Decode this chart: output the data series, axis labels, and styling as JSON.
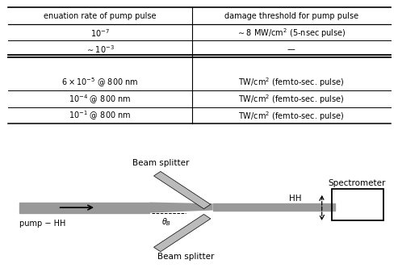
{
  "table_header": [
    "enuation rate of pump pulse",
    "damage threshold for pump pulse"
  ],
  "table_rows": [
    [
      "$10^{-7}$",
      "$\\sim 8$ MW/cm$^2$ (5-nsec pulse)"
    ],
    [
      "$\\sim 10^{-3}$",
      "—"
    ],
    [
      "",
      ""
    ],
    [
      "$6 \\times 10^{-5}$ @ 800 nm",
      "TW/cm$^2$ (femto-sec. pulse)"
    ],
    [
      "$10^{-4}$ @ 800 nm",
      "TW/cm$^2$ (femto-sec. pulse)"
    ],
    [
      "$10^{-1}$ @ 800 nm",
      "TW/cm$^2$ (femto-sec. pulse)"
    ]
  ],
  "bg_color": "#ffffff",
  "text_color": "#000000",
  "gray": "#999999",
  "lgray": "#bbbbbb",
  "diagram_labels": {
    "beam_splitter_top": "Beam splitter",
    "beam_splitter_bot": "Beam splitter",
    "spectrometer": "Spectrometer",
    "hh": "HH",
    "pump_hh": "pump − HH",
    "theta": "$\\theta_B$"
  }
}
